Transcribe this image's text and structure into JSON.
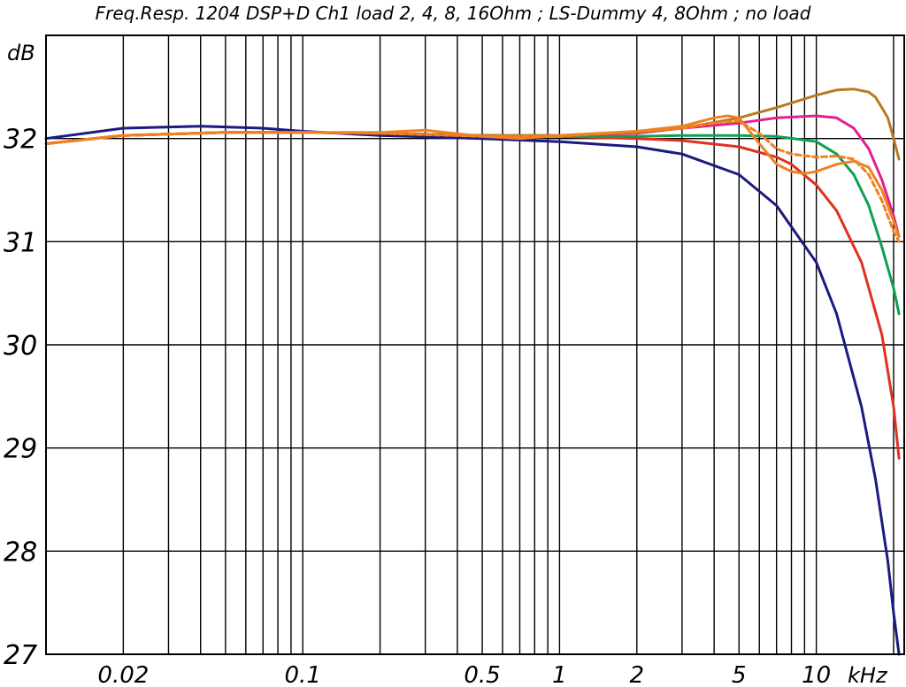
{
  "chart_data": {
    "type": "line",
    "title": "Freq.Resp. 1204 DSP+D Ch1 load 2, 4, 8, 16Ohm ; LS-Dummy 4, 8Ohm ; no load",
    "ylabel": "dB",
    "xlabel": "kHz",
    "x_scale": "log",
    "xlim": [
      0.01,
      22
    ],
    "ylim": [
      27,
      33
    ],
    "grid": true,
    "y_ticks": [
      {
        "value": 32,
        "label": "32"
      },
      {
        "value": 31,
        "label": "31"
      },
      {
        "value": 30,
        "label": "30"
      },
      {
        "value": 29,
        "label": "29"
      },
      {
        "value": 28,
        "label": "28"
      },
      {
        "value": 27,
        "label": "27"
      }
    ],
    "x_ticks": [
      {
        "value": 0.02,
        "label": "0.02"
      },
      {
        "value": 0.1,
        "label": "0.1"
      },
      {
        "value": 0.5,
        "label": "0.5"
      },
      {
        "value": 1,
        "label": "1"
      },
      {
        "value": 2,
        "label": "2"
      },
      {
        "value": 5,
        "label": "5"
      },
      {
        "value": 10,
        "label": "10"
      }
    ],
    "series": [
      {
        "color": "#1a1a80",
        "dashed": false,
        "x": [
          0.01,
          0.02,
          0.04,
          0.07,
          0.1,
          0.2,
          0.5,
          1,
          2,
          3,
          5,
          7,
          10,
          12,
          15,
          17,
          19,
          20,
          21
        ],
        "y": [
          32.0,
          32.1,
          32.12,
          32.1,
          32.07,
          32.03,
          32.0,
          31.97,
          31.92,
          31.85,
          31.65,
          31.35,
          30.8,
          30.3,
          29.4,
          28.7,
          27.9,
          27.4,
          27.0
        ]
      },
      {
        "color": "#e03020",
        "dashed": false,
        "x": [
          0.01,
          0.02,
          0.05,
          0.1,
          0.2,
          0.5,
          1,
          2,
          3,
          5,
          7,
          8,
          10,
          12,
          15,
          18,
          20,
          21
        ],
        "y": [
          31.95,
          32.03,
          32.06,
          32.06,
          32.05,
          32.03,
          32.02,
          32.0,
          31.98,
          31.92,
          31.82,
          31.75,
          31.55,
          31.3,
          30.8,
          30.1,
          29.4,
          28.9
        ]
      },
      {
        "color": "#10a050",
        "dashed": false,
        "x": [
          0.01,
          0.02,
          0.05,
          0.1,
          0.2,
          0.5,
          1,
          2,
          3,
          5,
          7,
          10,
          12,
          14,
          16,
          18,
          20,
          21
        ],
        "y": [
          31.95,
          32.03,
          32.06,
          32.06,
          32.05,
          32.03,
          32.02,
          32.02,
          32.03,
          32.03,
          32.02,
          31.97,
          31.85,
          31.65,
          31.35,
          30.95,
          30.55,
          30.3
        ]
      },
      {
        "color": "#e0208c",
        "dashed": false,
        "x": [
          0.01,
          0.02,
          0.05,
          0.1,
          0.2,
          0.5,
          1,
          2,
          3,
          5,
          7,
          10,
          12,
          14,
          16,
          18,
          20,
          21
        ],
        "y": [
          31.95,
          32.03,
          32.06,
          32.06,
          32.05,
          32.03,
          32.03,
          32.05,
          32.1,
          32.15,
          32.2,
          32.22,
          32.2,
          32.1,
          31.9,
          31.6,
          31.25,
          31.05
        ]
      },
      {
        "color": "#b87a20",
        "dashed": false,
        "x": [
          0.01,
          0.02,
          0.05,
          0.1,
          0.2,
          0.5,
          1,
          2,
          3,
          5,
          7,
          10,
          12,
          14,
          16,
          17,
          18,
          19,
          20,
          21
        ],
        "y": [
          31.95,
          32.03,
          32.06,
          32.06,
          32.05,
          32.03,
          32.03,
          32.06,
          32.1,
          32.2,
          32.3,
          32.42,
          32.47,
          32.48,
          32.45,
          32.4,
          32.3,
          32.2,
          32.0,
          31.8
        ]
      },
      {
        "color": "#f08020",
        "dashed": false,
        "x": [
          0.01,
          0.02,
          0.05,
          0.1,
          0.2,
          0.3,
          0.5,
          0.7,
          1,
          2,
          3,
          4,
          4.5,
          5,
          6,
          7,
          8,
          9,
          10,
          12,
          14,
          16,
          18,
          20,
          21
        ],
        "y": [
          31.95,
          32.03,
          32.06,
          32.06,
          32.06,
          32.08,
          32.02,
          32.0,
          32.03,
          32.07,
          32.12,
          32.2,
          32.22,
          32.2,
          31.95,
          31.75,
          31.68,
          31.66,
          31.68,
          31.75,
          31.78,
          31.72,
          31.5,
          31.2,
          31.05
        ]
      },
      {
        "color": "#f08020",
        "dashed": true,
        "x": [
          0.01,
          0.02,
          0.05,
          0.1,
          0.2,
          0.5,
          1,
          2,
          3,
          4,
          5,
          6,
          7,
          8,
          10,
          12,
          14,
          16,
          18,
          20,
          21
        ],
        "y": [
          31.95,
          32.03,
          32.06,
          32.06,
          32.05,
          32.02,
          32.02,
          32.07,
          32.1,
          32.15,
          32.17,
          32.05,
          31.9,
          31.85,
          31.82,
          31.83,
          31.8,
          31.65,
          31.4,
          31.1,
          31.0
        ]
      }
    ]
  }
}
